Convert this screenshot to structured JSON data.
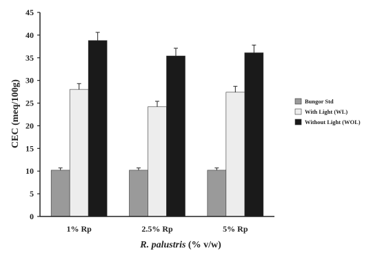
{
  "chart_data": {
    "type": "bar",
    "categories": [
      "1% Rp",
      "2.5% Rp",
      "5% Rp"
    ],
    "series": [
      {
        "name": "Bungor Std",
        "values": [
          10.2,
          10.2,
          10.2
        ],
        "errors": [
          0.5,
          0.5,
          0.5
        ],
        "color": "#9a9a9a"
      },
      {
        "name": "With Light (WL)",
        "values": [
          28.0,
          24.2,
          27.4
        ],
        "errors": [
          1.3,
          1.2,
          1.3
        ],
        "color": "#ededed"
      },
      {
        "name": "Without Light (WOL)",
        "values": [
          38.8,
          35.4,
          36.1
        ],
        "errors": [
          1.8,
          1.7,
          1.7
        ],
        "color": "#1a1a1a"
      }
    ],
    "ylabel": "CEC (meq/100g)",
    "xlabel_italic": "R. palustris",
    "xlabel_rest": " (% v/w)",
    "ylim": [
      0,
      45
    ],
    "yticks": [
      "0",
      "5",
      "10",
      "15",
      "20",
      "25",
      "30",
      "35",
      "40",
      "45"
    ],
    "grid": false,
    "legend_position": "right"
  }
}
